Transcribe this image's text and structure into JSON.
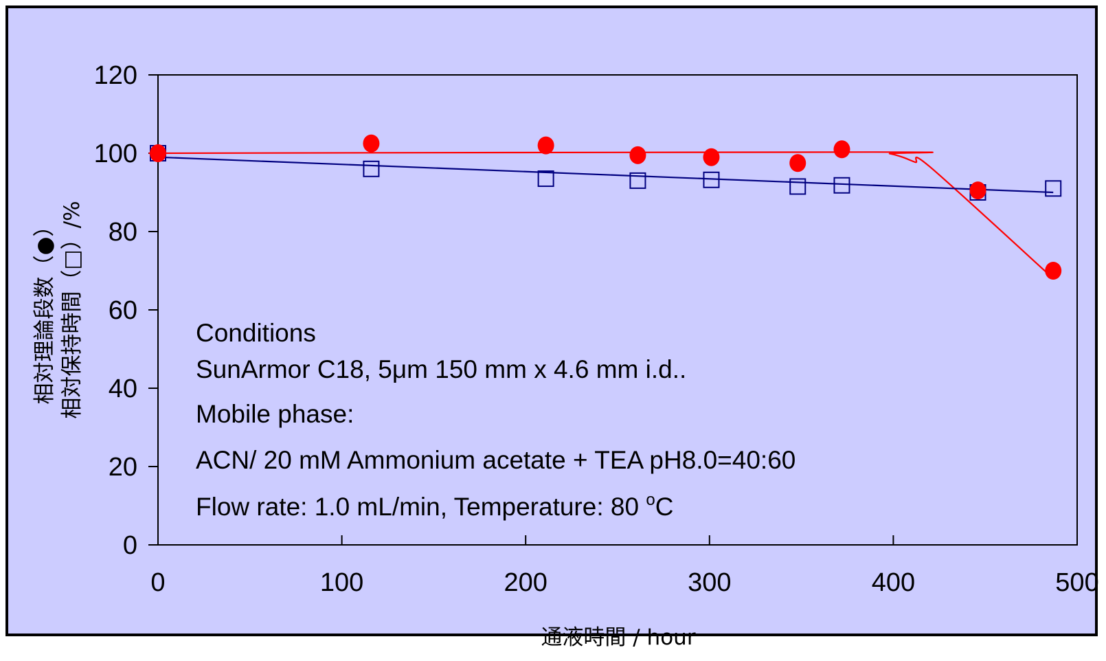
{
  "colors": {
    "background": "#ccccff",
    "frame": "#000000",
    "series_plates": "#ff0000",
    "series_retention": "#000080"
  },
  "chart_data": {
    "type": "scatter",
    "xlabel": "通液時間 / hour",
    "ylabel_lines": [
      "相対理論段数（●）",
      "相対保持時間（□）/%"
    ],
    "xlim": [
      0,
      500
    ],
    "ylim": [
      0,
      120
    ],
    "x_ticks": [
      "0",
      "100",
      "200",
      "300",
      "400",
      "500"
    ],
    "y_ticks": [
      "0",
      "20",
      "40",
      "60",
      "80",
      "100",
      "120"
    ],
    "grid": false,
    "legend": "none",
    "series": [
      {
        "marker": "filled-circle",
        "color": "#ff0000",
        "x": [
          0,
          116,
          211,
          261,
          301,
          348,
          372,
          446,
          487
        ],
        "y": [
          100,
          102.5,
          102,
          99.5,
          99,
          97.5,
          101,
          90.5,
          70
        ],
        "trend": {
          "x": [
            -5,
            390,
            398,
            405,
            412,
            420,
            487
          ],
          "y": [
            100,
            100.3,
            99.9,
            99,
            97.7,
            96.5,
            68
          ]
        }
      },
      {
        "marker": "open-square",
        "color": "#000080",
        "x": [
          0,
          116,
          211,
          261,
          301,
          348,
          372,
          446,
          487
        ],
        "y": [
          100,
          96,
          93.5,
          93,
          93.2,
          91.5,
          91.8,
          90,
          91
        ],
        "trend": {
          "x": [
            0,
            487
          ],
          "y": [
            99,
            90
          ]
        }
      }
    ],
    "annotation": {
      "line1": "Conditions",
      "line2": "SunArmor C18, 5μm   150 mm x 4.6 mm i.d..",
      "line3": "Mobile phase:",
      "line4": "ACN/ 20 mM Ammonium acetate + TEA pH8.0=40:60",
      "line5_prefix": " Flow rate: 1.0 mL/min,  Temperature: 80 ",
      "line5_degree": "o",
      "line5_unit": "C"
    }
  }
}
